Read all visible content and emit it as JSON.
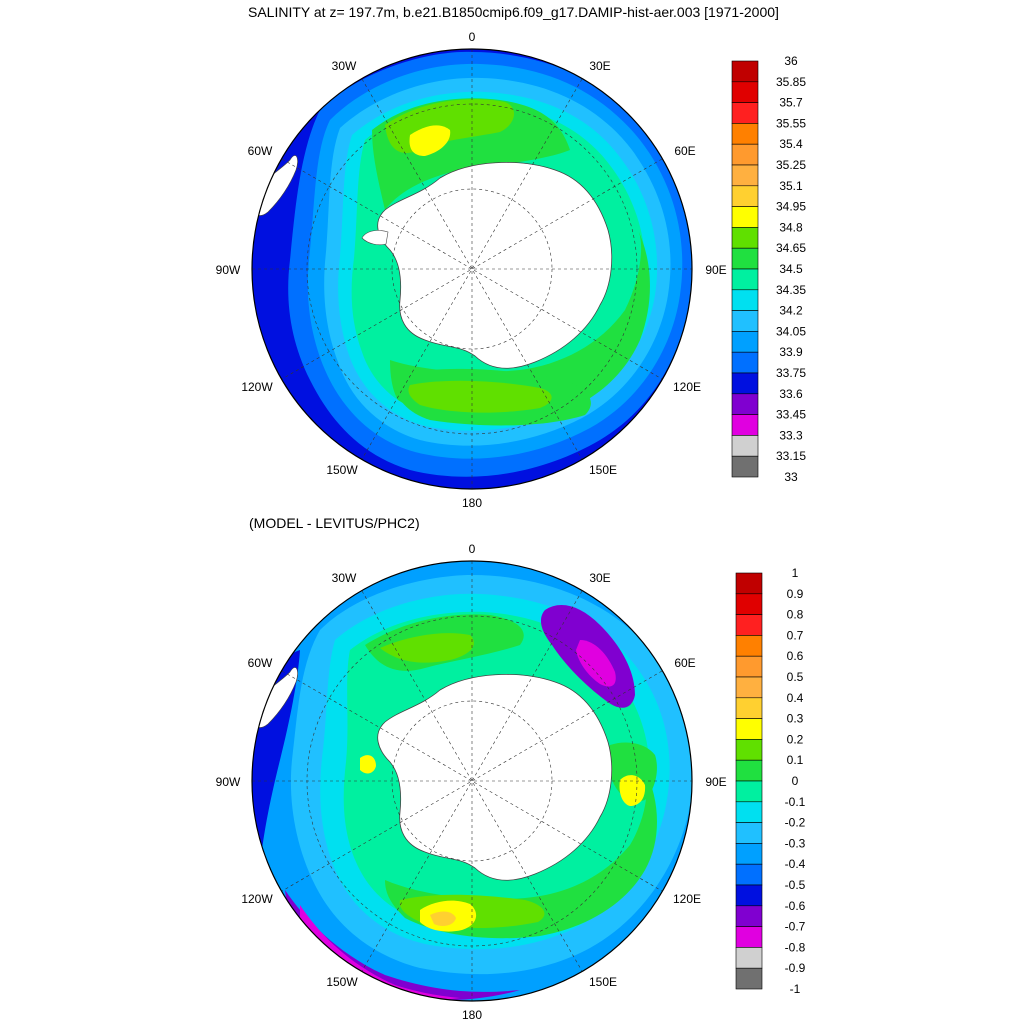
{
  "titles": {
    "main": "SALINITY at z= 197.7m, b.e21.B1850cmip6.f09_g17.DAMIP-hist-aer.003 [1971-2000]",
    "diff": "(MODEL - LEVITUS/PHC2)"
  },
  "map_labels": [
    "0",
    "30E",
    "60E",
    "90E",
    "120E",
    "150E",
    "180",
    "150W",
    "120W",
    "90W",
    "60W",
    "30W"
  ],
  "colorbar_top": {
    "labels": [
      "36",
      "35.85",
      "35.7",
      "35.55",
      "35.4",
      "35.25",
      "35.1",
      "34.95",
      "34.8",
      "34.65",
      "34.5",
      "34.35",
      "34.2",
      "34.05",
      "33.9",
      "33.75",
      "33.6",
      "33.45",
      "33.3",
      "33.15",
      "33"
    ],
    "colors": [
      "#c00000",
      "#e00000",
      "#ff2020",
      "#ff8000",
      "#ff9a2e",
      "#ffb040",
      "#ffd030",
      "#ffff00",
      "#60e000",
      "#20e040",
      "#00f0a0",
      "#00e0f0",
      "#20c0ff",
      "#00a0ff",
      "#0070ff",
      "#0010e0",
      "#8000d0",
      "#e000e0",
      "#d0d0d0",
      "#707070"
    ]
  },
  "colorbar_bottom": {
    "labels": [
      "1",
      "0.9",
      "0.8",
      "0.7",
      "0.6",
      "0.5",
      "0.4",
      "0.3",
      "0.2",
      "0.1",
      "0",
      "-0.1",
      "-0.2",
      "-0.3",
      "-0.4",
      "-0.5",
      "-0.6",
      "-0.7",
      "-0.8",
      "-0.9",
      "-1"
    ],
    "colors": [
      "#c00000",
      "#e00000",
      "#ff2020",
      "#ff8000",
      "#ff9a2e",
      "#ffb040",
      "#ffd030",
      "#ffff00",
      "#60e000",
      "#20e040",
      "#00f0a0",
      "#00e0f0",
      "#20c0ff",
      "#00a0ff",
      "#0070ff",
      "#0010e0",
      "#8000d0",
      "#e000e0",
      "#d0d0d0",
      "#707070"
    ]
  }
}
